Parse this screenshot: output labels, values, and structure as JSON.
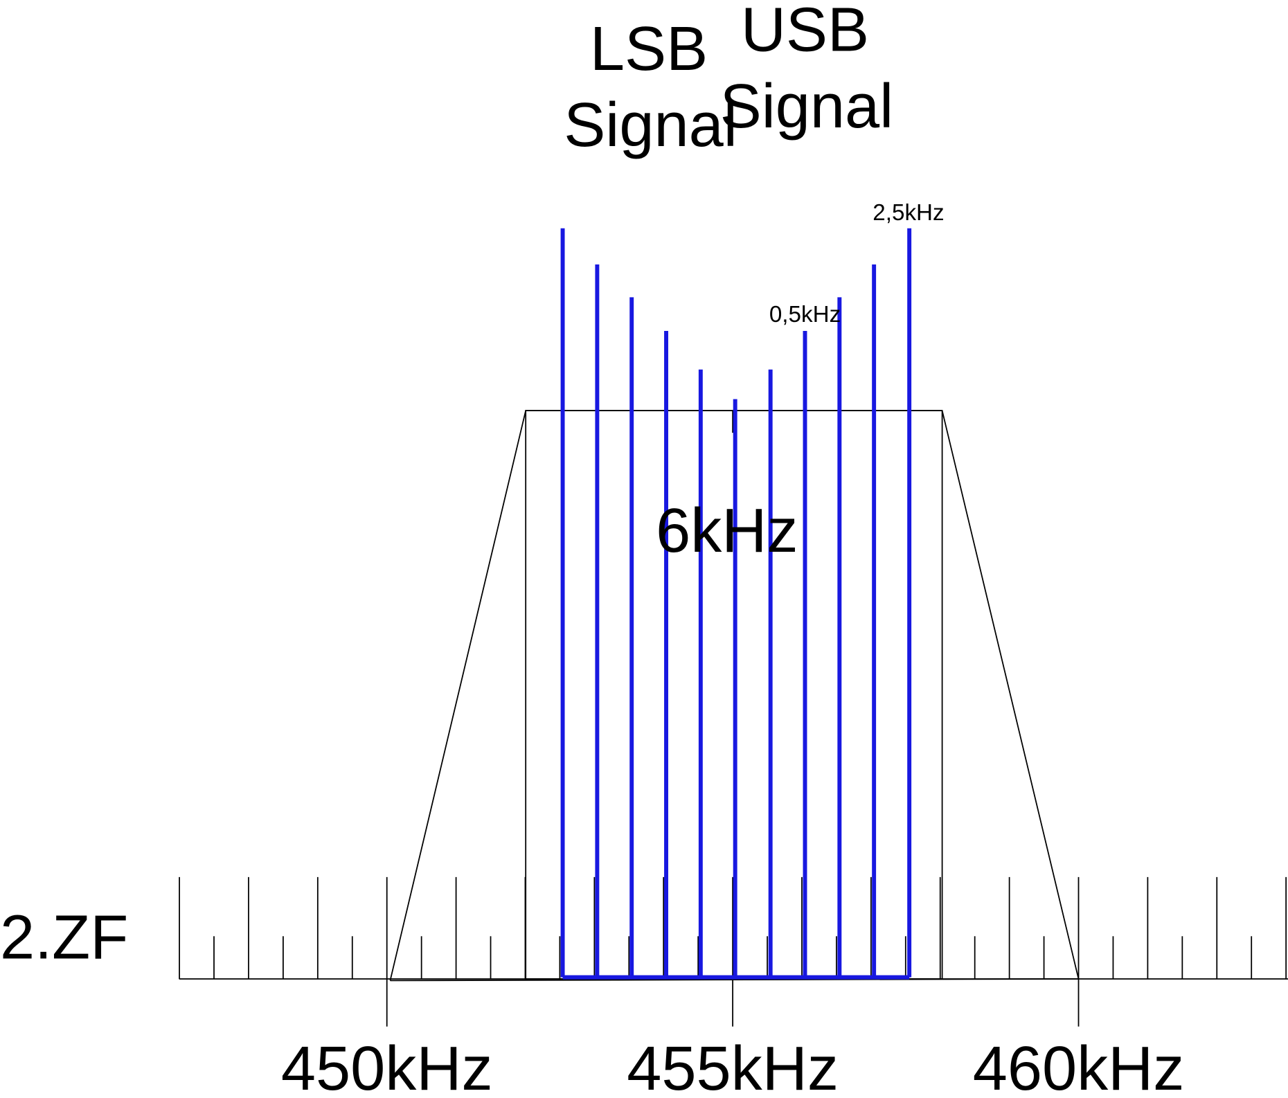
{
  "signals": [
    {
      "name": "LSB",
      "label": "Signal"
    },
    {
      "name": "USB",
      "label": "Signal"
    }
  ],
  "annotations": {
    "upper": "2,5kHz",
    "lower": "0,5kHz",
    "bandwidth": "6kHz"
  },
  "axis": {
    "name": "2.ZF",
    "labels": [
      "450kHz",
      "455kHz",
      "460kHz"
    ]
  }
}
